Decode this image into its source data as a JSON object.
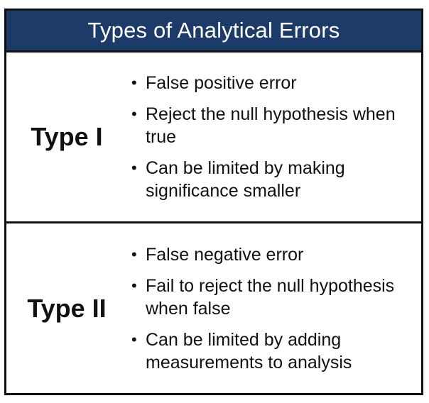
{
  "title": "Types of Analytical Errors",
  "colors": {
    "header_bg": "#1d3b68",
    "header_text": "#ffffff",
    "border": "#111111"
  },
  "rows": [
    {
      "label": "Type I",
      "bullets": [
        "False positive error",
        "Reject the null hypothesis when true",
        "Can be limited by making significance smaller"
      ]
    },
    {
      "label": "Type II",
      "bullets": [
        "False negative error",
        "Fail to reject the null hypothesis when false",
        "Can be limited by adding measurements to analysis"
      ]
    }
  ],
  "bullet_glyph": "•"
}
